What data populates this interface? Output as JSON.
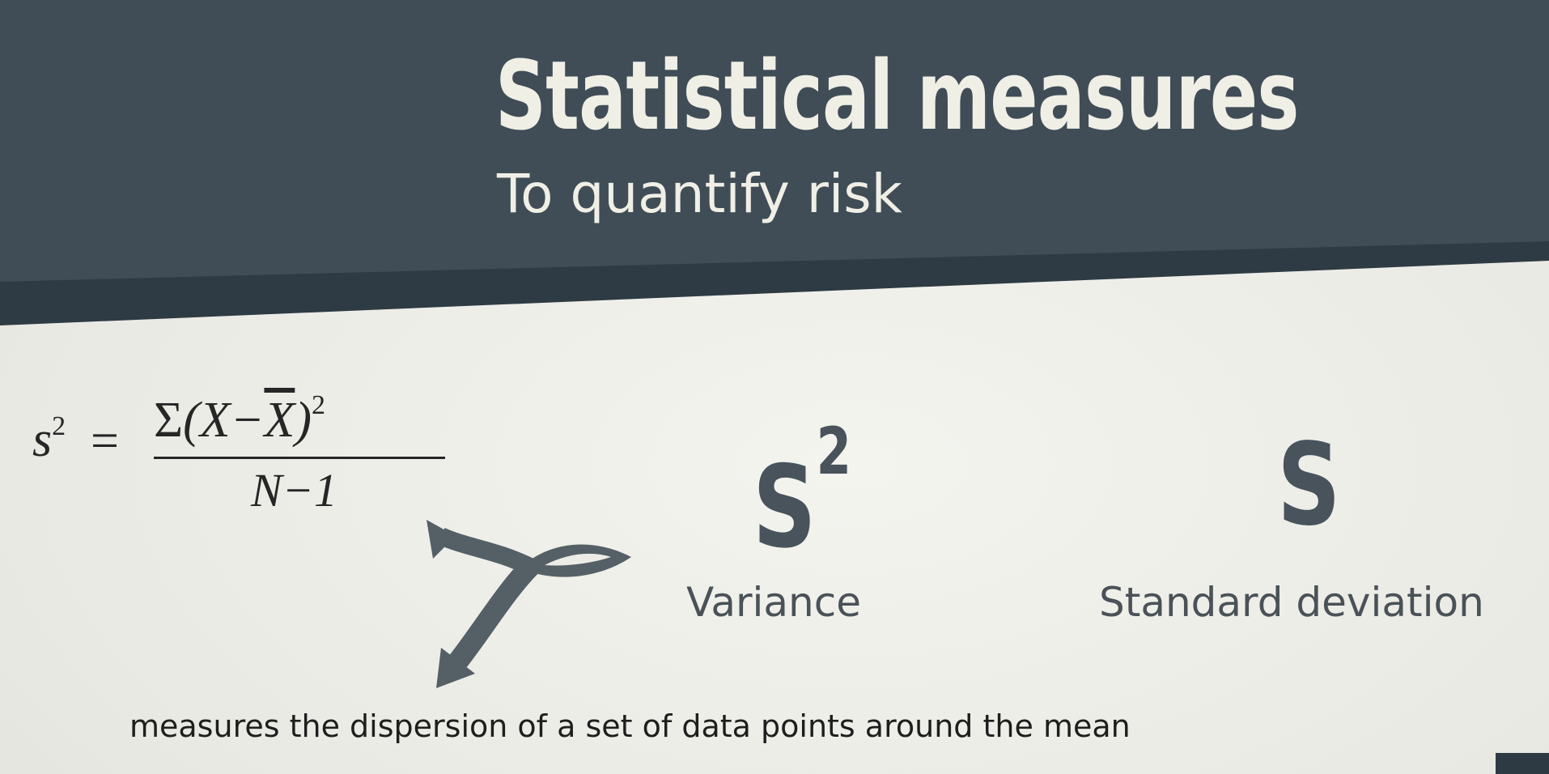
{
  "banner": {
    "title": "Statistical measures",
    "subtitle": "To quantify risk",
    "colors": {
      "main": "#404d57",
      "stripe": "#2e3a44"
    }
  },
  "formula": {
    "lhs": "s",
    "lhs_exp": "2",
    "equals": "=",
    "numerator_sigma": "Σ",
    "numerator_open": "(X−",
    "numerator_xbar": "X",
    "numerator_close": ")",
    "numerator_exp": "2",
    "denominator": "N−1"
  },
  "variance": {
    "symbol": "S",
    "exponent": "2",
    "label": "Variance"
  },
  "std_dev": {
    "symbol": "S",
    "label": "Standard deviation"
  },
  "caption": "measures the dispersion of a set of data points around the mean",
  "arrow_icon": "branching-arrow-icon",
  "colors": {
    "symbol": "#48535c",
    "text": "#1e1e1e",
    "background": "#ececE6"
  }
}
